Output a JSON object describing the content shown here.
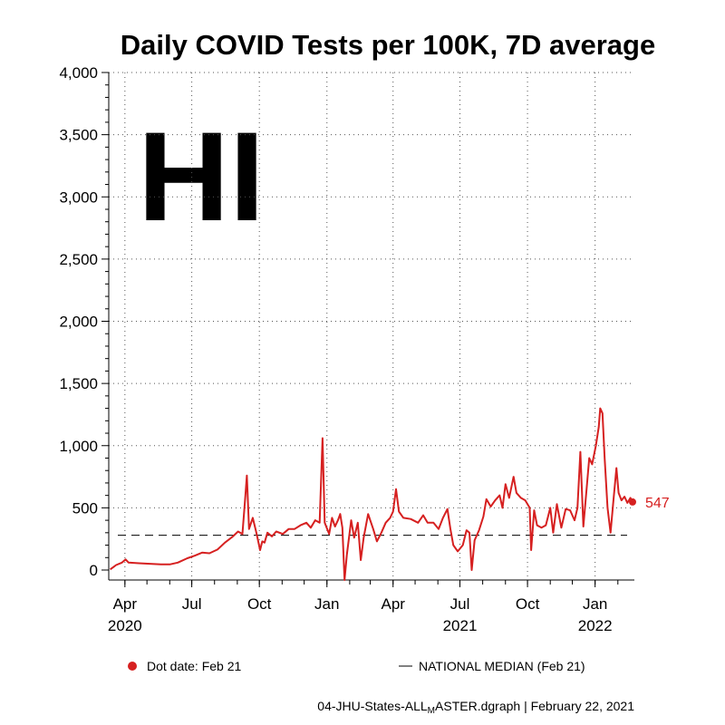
{
  "chart_data": {
    "type": "line",
    "title": "Daily COVID Tests per 100K, 7D average",
    "state_label": "HI",
    "ylim": [
      0,
      4000
    ],
    "y_ticks": [
      0,
      500,
      1000,
      1500,
      2000,
      2500,
      3000,
      3500,
      4000
    ],
    "y_tick_labels": [
      "0",
      "500",
      "1,000",
      "1,500",
      "2,000",
      "2,500",
      "3,000",
      "3,500",
      "4,000"
    ],
    "x_range": [
      "2020-03-10",
      "2022-02-21"
    ],
    "x_ticks": [
      {
        "date": "2020-04-01",
        "label": "Apr",
        "year": "2020"
      },
      {
        "date": "2020-07-01",
        "label": "Jul"
      },
      {
        "date": "2020-10-01",
        "label": "Oct"
      },
      {
        "date": "2021-01-01",
        "label": "Jan"
      },
      {
        "date": "2021-04-01",
        "label": "Apr"
      },
      {
        "date": "2021-07-01",
        "label": "Jul",
        "year": "2021"
      },
      {
        "date": "2021-10-01",
        "label": "Oct"
      },
      {
        "date": "2022-01-01",
        "label": "Jan",
        "year": "2022"
      }
    ],
    "grid": true,
    "series": [
      {
        "name": "HI",
        "color": "#d62020",
        "points": [
          [
            "2020-03-12",
            5
          ],
          [
            "2020-03-20",
            40
          ],
          [
            "2020-03-28",
            60
          ],
          [
            "2020-04-02",
            85
          ],
          [
            "2020-04-06",
            60
          ],
          [
            "2020-04-20",
            55
          ],
          [
            "2020-05-05",
            50
          ],
          [
            "2020-05-20",
            45
          ],
          [
            "2020-06-01",
            45
          ],
          [
            "2020-06-12",
            60
          ],
          [
            "2020-06-25",
            95
          ],
          [
            "2020-07-05",
            115
          ],
          [
            "2020-07-15",
            140
          ],
          [
            "2020-07-25",
            135
          ],
          [
            "2020-08-05",
            165
          ],
          [
            "2020-08-15",
            220
          ],
          [
            "2020-08-25",
            265
          ],
          [
            "2020-09-02",
            310
          ],
          [
            "2020-09-08",
            290
          ],
          [
            "2020-09-12",
            600
          ],
          [
            "2020-09-14",
            760
          ],
          [
            "2020-09-17",
            330
          ],
          [
            "2020-09-22",
            420
          ],
          [
            "2020-09-27",
            300
          ],
          [
            "2020-10-02",
            160
          ],
          [
            "2020-10-05",
            230
          ],
          [
            "2020-10-08",
            220
          ],
          [
            "2020-10-12",
            300
          ],
          [
            "2020-10-18",
            270
          ],
          [
            "2020-10-24",
            310
          ],
          [
            "2020-11-02",
            290
          ],
          [
            "2020-11-10",
            330
          ],
          [
            "2020-11-18",
            330
          ],
          [
            "2020-11-26",
            360
          ],
          [
            "2020-12-04",
            380
          ],
          [
            "2020-12-10",
            340
          ],
          [
            "2020-12-16",
            400
          ],
          [
            "2020-12-22",
            380
          ],
          [
            "2020-12-26",
            1060
          ],
          [
            "2020-12-29",
            380
          ],
          [
            "2021-01-04",
            290
          ],
          [
            "2021-01-08",
            420
          ],
          [
            "2021-01-12",
            350
          ],
          [
            "2021-01-16",
            400
          ],
          [
            "2021-01-19",
            450
          ],
          [
            "2021-01-22",
            340
          ],
          [
            "2021-01-25",
            -80
          ],
          [
            "2021-01-28",
            120
          ],
          [
            "2021-02-03",
            400
          ],
          [
            "2021-02-07",
            260
          ],
          [
            "2021-02-12",
            380
          ],
          [
            "2021-02-16",
            80
          ],
          [
            "2021-02-20",
            260
          ],
          [
            "2021-02-26",
            450
          ],
          [
            "2021-03-05",
            330
          ],
          [
            "2021-03-10",
            230
          ],
          [
            "2021-03-16",
            300
          ],
          [
            "2021-03-22",
            380
          ],
          [
            "2021-03-28",
            420
          ],
          [
            "2021-04-01",
            470
          ],
          [
            "2021-04-05",
            650
          ],
          [
            "2021-04-09",
            470
          ],
          [
            "2021-04-15",
            420
          ],
          [
            "2021-04-25",
            410
          ],
          [
            "2021-05-05",
            380
          ],
          [
            "2021-05-12",
            440
          ],
          [
            "2021-05-18",
            380
          ],
          [
            "2021-05-26",
            380
          ],
          [
            "2021-06-02",
            330
          ],
          [
            "2021-06-08",
            420
          ],
          [
            "2021-06-14",
            490
          ],
          [
            "2021-06-18",
            330
          ],
          [
            "2021-06-22",
            200
          ],
          [
            "2021-06-28",
            150
          ],
          [
            "2021-07-05",
            200
          ],
          [
            "2021-07-10",
            320
          ],
          [
            "2021-07-14",
            300
          ],
          [
            "2021-07-17",
            0
          ],
          [
            "2021-07-21",
            240
          ],
          [
            "2021-07-27",
            320
          ],
          [
            "2021-08-02",
            430
          ],
          [
            "2021-08-06",
            570
          ],
          [
            "2021-08-12",
            510
          ],
          [
            "2021-08-18",
            560
          ],
          [
            "2021-08-24",
            600
          ],
          [
            "2021-08-28",
            500
          ],
          [
            "2021-09-01",
            690
          ],
          [
            "2021-09-06",
            580
          ],
          [
            "2021-09-12",
            750
          ],
          [
            "2021-09-16",
            620
          ],
          [
            "2021-09-22",
            580
          ],
          [
            "2021-09-28",
            560
          ],
          [
            "2021-10-04",
            500
          ],
          [
            "2021-10-06",
            160
          ],
          [
            "2021-10-10",
            480
          ],
          [
            "2021-10-14",
            360
          ],
          [
            "2021-10-20",
            340
          ],
          [
            "2021-10-26",
            360
          ],
          [
            "2021-11-01",
            500
          ],
          [
            "2021-11-05",
            300
          ],
          [
            "2021-11-10",
            530
          ],
          [
            "2021-11-16",
            340
          ],
          [
            "2021-11-22",
            490
          ],
          [
            "2021-11-28",
            480
          ],
          [
            "2021-12-04",
            400
          ],
          [
            "2021-12-08",
            500
          ],
          [
            "2021-12-12",
            950
          ],
          [
            "2021-12-16",
            350
          ],
          [
            "2021-12-20",
            620
          ],
          [
            "2021-12-24",
            900
          ],
          [
            "2021-12-28",
            850
          ],
          [
            "2022-01-02",
            1000
          ],
          [
            "2022-01-06",
            1150
          ],
          [
            "2022-01-08",
            1300
          ],
          [
            "2022-01-11",
            1260
          ],
          [
            "2022-01-14",
            900
          ],
          [
            "2022-01-18",
            500
          ],
          [
            "2022-01-22",
            300
          ],
          [
            "2022-01-26",
            560
          ],
          [
            "2022-01-30",
            820
          ],
          [
            "2022-02-02",
            620
          ],
          [
            "2022-02-06",
            560
          ],
          [
            "2022-02-10",
            590
          ],
          [
            "2022-02-14",
            540
          ],
          [
            "2022-02-18",
            580
          ],
          [
            "2022-02-21",
            547
          ]
        ]
      }
    ],
    "end_value": 547,
    "end_value_label": "547",
    "reference_line": {
      "value": 280,
      "style": "dashed",
      "color": "#000000"
    },
    "legend": {
      "position": "bottom",
      "dot_color": "#d62020",
      "dot_label": "Dot date: Feb 21",
      "line_label": "NATIONAL MEDIAN (Feb 21)"
    },
    "footer": "04-JHU-States-ALL",
    "footer_sub": "M",
    "footer_tail": "ASTER.dgraph | February 22, 2021"
  }
}
